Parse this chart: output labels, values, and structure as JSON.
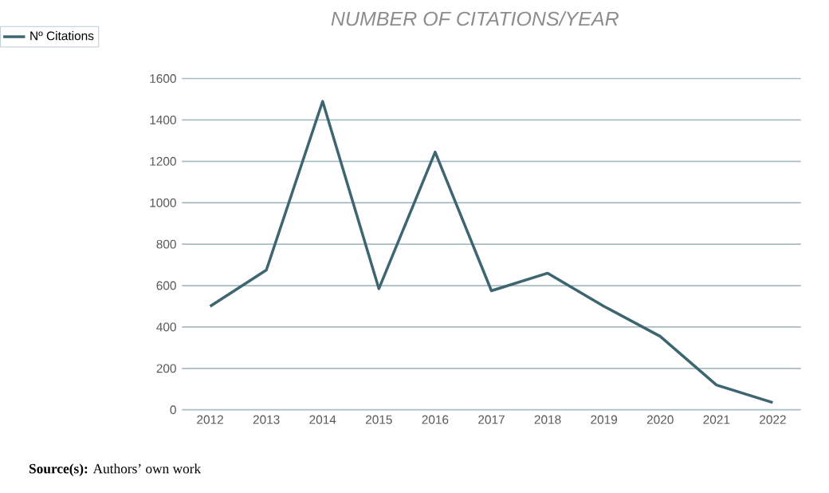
{
  "chart_data": {
    "type": "line",
    "title": "NUMBER OF CITATIONS/YEAR",
    "categories": [
      "2012",
      "2013",
      "2014",
      "2015",
      "2016",
      "2017",
      "2018",
      "2019",
      "2020",
      "2021",
      "2022"
    ],
    "series": [
      {
        "name": "Nº Citations",
        "color": "#3d6670",
        "values": [
          500,
          675,
          1490,
          585,
          1245,
          575,
          660,
          500,
          355,
          120,
          35
        ]
      }
    ],
    "ylim": [
      0,
      1600
    ],
    "yticks": [
      0,
      200,
      400,
      600,
      800,
      1000,
      1200,
      1400,
      1600
    ],
    "grid": "y",
    "legend": "top left",
    "marker": "none",
    "line_style": "solid",
    "annotations": [
      "**Source(s):** Authors’ own work"
    ]
  }
}
